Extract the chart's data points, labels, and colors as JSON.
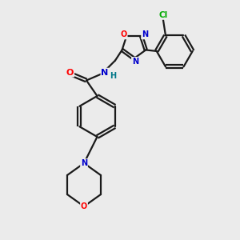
{
  "bg_color": "#ebebeb",
  "bond_color": "#1a1a1a",
  "atom_colors": {
    "O": "#ff0000",
    "N": "#0000cc",
    "Cl": "#00aa00",
    "H": "#007788",
    "C": "#1a1a1a"
  },
  "linewidth": 1.6,
  "dbo": 0.055
}
